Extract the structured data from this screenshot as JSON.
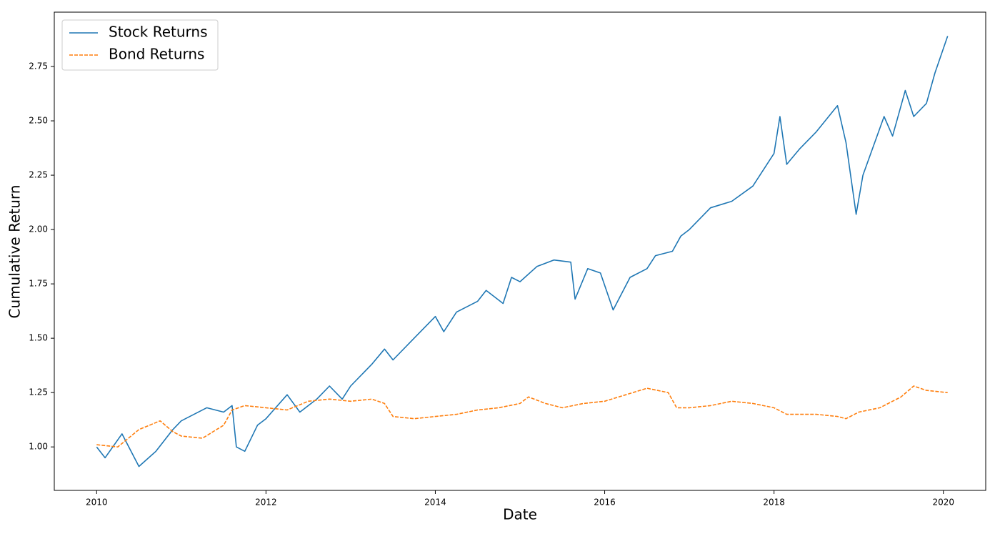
{
  "chart_data": {
    "type": "line",
    "x_label": "Date",
    "y_label": "Cumulative Return",
    "xlim": [
      2009.5,
      2020.5
    ],
    "ylim": [
      0.8,
      3.0
    ],
    "xticks": [
      2010,
      2012,
      2014,
      2016,
      2018,
      2020
    ],
    "yticks": [
      {
        "value": 1,
        "label": "1.00"
      },
      1.25,
      {
        "value": 1.5,
        "label": "1.50"
      },
      1.75,
      {
        "value": 2,
        "label": "2.00"
      },
      2.25,
      {
        "value": 2.5,
        "label": "2.50"
      },
      2.75
    ],
    "legend": "upper left",
    "series": [
      {
        "name": "Stock Returns",
        "color": "#1f77b4",
        "linestyle": "solid",
        "x": [
          2010.0,
          2010.1,
          2010.3,
          2010.5,
          2010.7,
          2010.9,
          2011.0,
          2011.3,
          2011.5,
          2011.6,
          2011.65,
          2011.75,
          2011.9,
          2012.0,
          2012.25,
          2012.4,
          2012.6,
          2012.75,
          2012.9,
          2013.0,
          2013.25,
          2013.4,
          2013.5,
          2013.75,
          2014.0,
          2014.1,
          2014.25,
          2014.5,
          2014.6,
          2014.8,
          2014.9,
          2015.0,
          2015.2,
          2015.4,
          2015.6,
          2015.65,
          2015.8,
          2015.95,
          2016.1,
          2016.3,
          2016.5,
          2016.6,
          2016.8,
          2016.9,
          2017.0,
          2017.25,
          2017.5,
          2017.75,
          2018.0,
          2018.07,
          2018.15,
          2018.3,
          2018.5,
          2018.75,
          2018.85,
          2018.97,
          2019.05,
          2019.3,
          2019.4,
          2019.55,
          2019.65,
          2019.8,
          2019.9,
          2020.05
        ],
        "values": [
          1.0,
          0.95,
          1.06,
          0.91,
          0.98,
          1.08,
          1.12,
          1.18,
          1.16,
          1.19,
          1.0,
          0.98,
          1.1,
          1.13,
          1.24,
          1.16,
          1.22,
          1.28,
          1.22,
          1.28,
          1.38,
          1.45,
          1.4,
          1.5,
          1.6,
          1.53,
          1.62,
          1.67,
          1.72,
          1.66,
          1.78,
          1.76,
          1.83,
          1.86,
          1.85,
          1.68,
          1.82,
          1.8,
          1.63,
          1.78,
          1.82,
          1.88,
          1.9,
          1.97,
          2.0,
          2.1,
          2.13,
          2.2,
          2.35,
          2.52,
          2.3,
          2.37,
          2.45,
          2.57,
          2.4,
          2.07,
          2.25,
          2.52,
          2.43,
          2.64,
          2.52,
          2.58,
          2.72,
          2.89
        ]
      },
      {
        "name": "Bond Returns",
        "color": "#ff7f0e",
        "linestyle": "dashed",
        "x": [
          2010.0,
          2010.25,
          2010.5,
          2010.75,
          2010.9,
          2011.0,
          2011.25,
          2011.5,
          2011.6,
          2011.75,
          2012.0,
          2012.25,
          2012.5,
          2012.75,
          2013.0,
          2013.25,
          2013.4,
          2013.5,
          2013.75,
          2014.0,
          2014.25,
          2014.5,
          2014.75,
          2015.0,
          2015.1,
          2015.3,
          2015.5,
          2015.75,
          2016.0,
          2016.25,
          2016.5,
          2016.75,
          2016.85,
          2017.0,
          2017.25,
          2017.5,
          2017.75,
          2018.0,
          2018.15,
          2018.5,
          2018.75,
          2018.85,
          2019.0,
          2019.25,
          2019.5,
          2019.65,
          2019.8,
          2020.05
        ],
        "values": [
          1.01,
          1.0,
          1.08,
          1.12,
          1.07,
          1.05,
          1.04,
          1.1,
          1.17,
          1.19,
          1.18,
          1.17,
          1.21,
          1.22,
          1.21,
          1.22,
          1.2,
          1.14,
          1.13,
          1.14,
          1.15,
          1.17,
          1.18,
          1.2,
          1.23,
          1.2,
          1.18,
          1.2,
          1.21,
          1.24,
          1.27,
          1.25,
          1.18,
          1.18,
          1.19,
          1.21,
          1.2,
          1.18,
          1.15,
          1.15,
          1.14,
          1.13,
          1.16,
          1.18,
          1.23,
          1.28,
          1.26,
          1.25
        ]
      }
    ]
  }
}
